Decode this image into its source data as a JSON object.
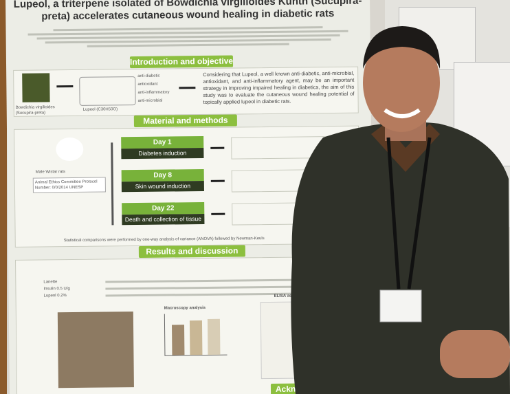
{
  "poster": {
    "title": "Lupeol, a triterpene isolated of Bowdichia virgilioides Kunth (Sucupira-preta) accelerates cutaneous wound healing in diabetic rats",
    "sections": {
      "introduction": {
        "heading": "Introduction and objective",
        "plant_label": "Bowdichia virgilioides (Sucupira-preta)",
        "compound_label": "Lupeol (C30H50O)",
        "properties": [
          "anti-diabetic",
          "antioxidant",
          "anti-inflammatory",
          "anti-microbial"
        ],
        "text": "Considering that Lupeol, a well known anti-diabetic, anti-microbial, antioxidant, and anti-inflammatory agent, may be an important strategy in improving impaired healing in diabetics, the aim of this study was to evaluate the cutaneous wound healing potential of topically applied lupeol in diabetic rats."
      },
      "methods": {
        "heading": "Material and methods",
        "animals": "Male Wistar rats",
        "ethics": "Animal Ethics Committee Protocol Number: 0/0/2014 UNESP",
        "steps": [
          {
            "day": "Day 1",
            "label": "Diabetes induction"
          },
          {
            "day": "Day 8",
            "label": "Skin wound induction"
          },
          {
            "day": "Day 22",
            "label": "Death and collection of tissue"
          }
        ],
        "statistics": "Statistical comparisons were performed by one-way analysis of variance (ANOVA) followed by Newman-Keuls"
      },
      "results": {
        "heading": "Results and discussion",
        "table_rows": [
          "Lanette",
          "Insulin 0.5 U/g",
          "Lupeol 0.2%"
        ],
        "macroscopy": "Macroscopy analysis",
        "elisa": "ELISA assay"
      },
      "acknowledgments": {
        "heading": "Acknowledgments"
      }
    }
  }
}
